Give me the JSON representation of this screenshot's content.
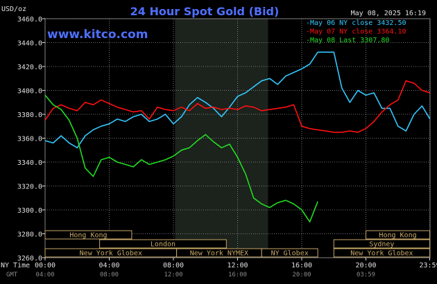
{
  "title": "24 Hour Spot Gold (Bid)",
  "timestamp": "May 08, 2025 16:19",
  "website": "www.kitco.com",
  "colors": {
    "background": "#000000",
    "grid": "#9a9a9a",
    "overnight_shade": "#1c221c",
    "title": "#4f6fff",
    "cyan": "#33c8ff",
    "red": "#ff1010",
    "green": "#22dd22",
    "session_box": "#c8a868",
    "text": "#e0e0e0"
  },
  "chart_data": {
    "type": "line",
    "title": "24 Hour Spot Gold (Bid)",
    "ylabel": "USD/oz",
    "ylim": [
      3260,
      3460
    ],
    "y_ticks": [
      "3460.0",
      "3440.0",
      "3420.0",
      "3400.0",
      "3380.0",
      "3360.0",
      "3340.0",
      "3320.0",
      "3300.0",
      "3280.0",
      "3260.0"
    ],
    "y_tick_values": [
      3460,
      3440,
      3420,
      3400,
      3380,
      3360,
      3340,
      3320,
      3300,
      3280,
      3260
    ],
    "x_row_label": "NY Time",
    "x_ticks": [
      "00:00",
      "04:00",
      "08:00",
      "12:00",
      "16:00",
      "20:00",
      "23:59"
    ],
    "x_tick_hours": [
      0,
      4,
      8,
      12,
      16,
      20,
      23.98
    ],
    "gmt_row_label": "GMT",
    "gmt_ticks": [
      "04:00",
      "08:00",
      "12:00",
      "16:00",
      "20:00",
      "03:59"
    ],
    "shaded_range_hours": [
      8.1,
      13.9
    ],
    "legend_position": "top-right",
    "legend": [
      {
        "label": "May 06 NY close 3432.50",
        "color": "#33c8ff"
      },
      {
        "label": "May 07 NY close 3364.10",
        "color": "#ff1010"
      },
      {
        "label": "May 08 Last 3307.80",
        "color": "#22dd22"
      }
    ],
    "sessions": [
      {
        "label": "Hong Kong",
        "start": 0,
        "end": 5.4,
        "row": 0
      },
      {
        "label": "Hong Kong",
        "start": 20.0,
        "end": 23.98,
        "row": 0
      },
      {
        "label": "London",
        "start": 3.4,
        "end": 11.3,
        "row": 1
      },
      {
        "label": "Sydney",
        "start": 18.0,
        "end": 23.98,
        "row": 1
      },
      {
        "label": "New York Globex",
        "start": 0,
        "end": 8.2,
        "row": 2
      },
      {
        "label": "New York NYMEX",
        "start": 8.2,
        "end": 13.5,
        "row": 2
      },
      {
        "label": "NY Globex",
        "start": 13.5,
        "end": 17.0,
        "row": 2
      },
      {
        "label": "New York Globex",
        "start": 18.0,
        "end": 23.98,
        "row": 2
      }
    ],
    "series": [
      {
        "name": "May 06 NY close 3432.50",
        "color": "#33c8ff",
        "x": [
          0,
          0.5,
          1,
          1.5,
          2,
          2.5,
          3,
          3.5,
          4,
          4.5,
          5,
          5.5,
          6,
          6.5,
          7,
          7.5,
          8,
          8.5,
          9,
          9.5,
          10,
          10.5,
          11,
          11.5,
          12,
          12.5,
          13,
          13.5,
          14,
          14.5,
          15,
          15.5,
          16,
          16.5,
          17,
          17.5,
          18,
          18.5,
          19,
          19.5,
          20,
          20.5,
          21,
          21.5,
          22,
          22.5,
          23,
          23.5,
          24
        ],
        "y": [
          3358,
          3356,
          3362,
          3356,
          3352,
          3362,
          3367,
          3370,
          3372,
          3376,
          3374,
          3378,
          3380,
          3374,
          3376,
          3380,
          3372,
          3378,
          3388,
          3394,
          3390,
          3385,
          3378,
          3386,
          3395,
          3398,
          3403,
          3408,
          3410,
          3405,
          3412,
          3415,
          3418,
          3422,
          3432,
          3432,
          3432,
          3402,
          3390,
          3400,
          3396,
          3398,
          3385,
          3385,
          3370,
          3366,
          3380,
          3387,
          3376
        ]
      },
      {
        "name": "May 07 NY close 3364.10",
        "color": "#ff1010",
        "x": [
          0,
          0.5,
          1,
          1.5,
          2,
          2.5,
          3,
          3.5,
          4,
          4.5,
          5,
          5.5,
          6,
          6.5,
          7,
          7.5,
          8,
          8.5,
          9,
          9.5,
          10,
          10.5,
          11,
          11.5,
          12,
          12.5,
          13,
          13.5,
          14,
          14.5,
          15,
          15.5,
          16,
          16.5,
          17,
          17.5,
          18,
          18.5,
          19,
          19.5,
          20,
          20.5,
          21,
          21.5,
          22,
          22.5,
          23,
          23.5,
          24
        ],
        "y": [
          3375,
          3385,
          3388,
          3385,
          3383,
          3390,
          3388,
          3392,
          3389,
          3386,
          3384,
          3382,
          3383,
          3376,
          3386,
          3384,
          3383,
          3386,
          3383,
          3389,
          3385,
          3386,
          3384,
          3385,
          3384,
          3387,
          3386,
          3383,
          3384,
          3385,
          3386,
          3388,
          3370,
          3368,
          3367,
          3366,
          3365,
          3365,
          3366,
          3365,
          3368,
          3374,
          3382,
          3388,
          3392,
          3408,
          3406,
          3400,
          3398
        ]
      },
      {
        "name": "May 08 Last 3307.80",
        "color": "#22dd22",
        "x": [
          0,
          0.5,
          1,
          1.5,
          2,
          2.5,
          3,
          3.5,
          4,
          4.5,
          5,
          5.5,
          6,
          6.5,
          7,
          7.5,
          8,
          8.5,
          9,
          9.5,
          10,
          10.5,
          11,
          11.5,
          12,
          12.5,
          13,
          13.5,
          14,
          14.5,
          15,
          15.5,
          16,
          16.5,
          17
        ],
        "y": [
          3396,
          3388,
          3384,
          3375,
          3360,
          3335,
          3328,
          3342,
          3344,
          3340,
          3338,
          3336,
          3342,
          3338,
          3340,
          3342,
          3345,
          3350,
          3352,
          3358,
          3363,
          3357,
          3352,
          3355,
          3344,
          3330,
          3310,
          3305,
          3302,
          3306,
          3308,
          3305,
          3300,
          3290,
          3307
        ]
      }
    ]
  }
}
